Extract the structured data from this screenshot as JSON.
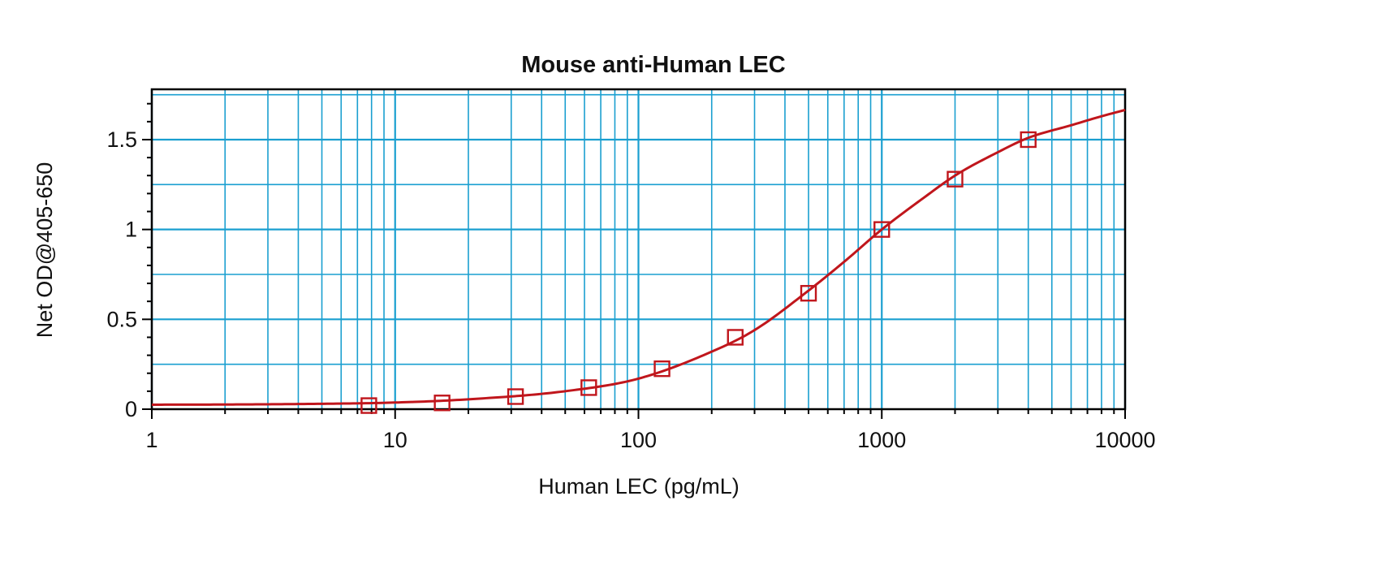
{
  "chart_data": {
    "type": "scatter",
    "title": "Mouse anti-Human LEC",
    "xlabel": "Human LEC (pg/mL)",
    "ylabel": "Net OD@405-650",
    "x_scale": "log",
    "xlim": [
      1,
      10000
    ],
    "ylim": [
      0,
      1.78
    ],
    "x_tick_labels": [
      "1",
      "10",
      "100",
      "1000",
      "10000"
    ],
    "x_tick_values": [
      1,
      10,
      100,
      1000,
      10000
    ],
    "y_tick_labels": [
      "0",
      "0.5",
      "1",
      "1.5"
    ],
    "y_tick_values": [
      0,
      0.5,
      1,
      1.5
    ],
    "grid": true,
    "colors": {
      "grid": "#1a9fd0",
      "series": "#c0161c",
      "axis": "#000000"
    },
    "series": [
      {
        "marker": "square",
        "x": [
          7.8,
          15.6,
          31.25,
          62.5,
          125,
          250,
          500,
          1000,
          2000,
          4000
        ],
        "y": [
          0.02,
          0.035,
          0.07,
          0.12,
          0.225,
          0.4,
          0.645,
          1.0,
          1.28,
          1.5
        ]
      }
    ],
    "fit_curve": {
      "type": "4PL",
      "description": "smooth fitted line through the standards",
      "x": [
        1,
        2,
        5,
        10,
        20,
        50,
        100,
        200,
        300,
        500,
        700,
        1000,
        1500,
        2000,
        3000,
        4000,
        6000,
        8000,
        10000
      ],
      "y": [
        0.025,
        0.026,
        0.03,
        0.037,
        0.055,
        0.1,
        0.17,
        0.32,
        0.44,
        0.66,
        0.82,
        1.0,
        1.18,
        1.3,
        1.43,
        1.51,
        1.58,
        1.63,
        1.665
      ]
    }
  }
}
